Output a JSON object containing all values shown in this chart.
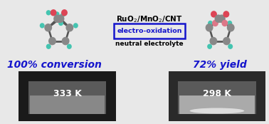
{
  "catalyst_text": "RuO$_2$/MnO$_2$/CNT",
  "arrow_text": "electro-oxidation",
  "condition_text": "neutral electrolyte",
  "left_label": "100% conversion",
  "right_label": "72% yield",
  "left_temp": "333 K",
  "right_temp": "298 K",
  "blue_text_color": "#1515cc",
  "arrow_box_color": "#1515cc",
  "bg_color": "#e8e8e8",
  "atom_gray": "#888888",
  "atom_red": "#dd4455",
  "atom_cyan": "#44c4b0",
  "atom_pink": "#dd7788",
  "bond_color": "#555555"
}
